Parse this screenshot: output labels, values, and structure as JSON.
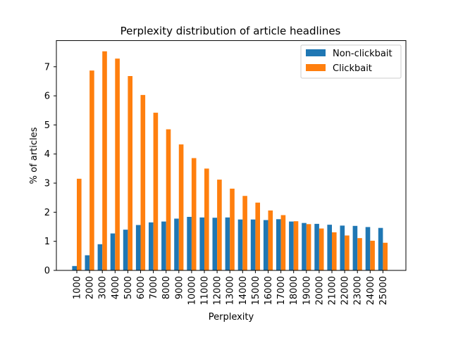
{
  "chart_data": {
    "type": "bar",
    "title": "Perplexity distribution of article headlines",
    "xlabel": "Perplexity",
    "ylabel": "% of articles",
    "ylim": [
      0,
      7.9
    ],
    "yticks": [
      0,
      1,
      2,
      3,
      4,
      5,
      6,
      7
    ],
    "grid": false,
    "legend_position": "top-right",
    "categories": [
      "1000",
      "2000",
      "3000",
      "4000",
      "5000",
      "6000",
      "7000",
      "8000",
      "9000",
      "10000",
      "11000",
      "12000",
      "13000",
      "14000",
      "15000",
      "16000",
      "17000",
      "18000",
      "19000",
      "20000",
      "21000",
      "22000",
      "23000",
      "24000",
      "25000"
    ],
    "series": [
      {
        "name": "Non-clickbait",
        "color": "#1f77b4",
        "values": [
          0.15,
          0.52,
          0.9,
          1.27,
          1.4,
          1.56,
          1.65,
          1.68,
          1.78,
          1.84,
          1.82,
          1.81,
          1.82,
          1.75,
          1.75,
          1.73,
          1.76,
          1.68,
          1.63,
          1.6,
          1.57,
          1.54,
          1.53,
          1.49,
          1.46
        ]
      },
      {
        "name": "Clickbait",
        "color": "#ff7f0e",
        "values": [
          3.15,
          6.87,
          7.53,
          7.28,
          6.68,
          6.03,
          5.42,
          4.85,
          4.33,
          3.86,
          3.5,
          3.12,
          2.81,
          2.56,
          2.33,
          2.06,
          1.9,
          1.69,
          1.59,
          1.44,
          1.31,
          1.2,
          1.11,
          1.02,
          0.95
        ]
      }
    ]
  }
}
